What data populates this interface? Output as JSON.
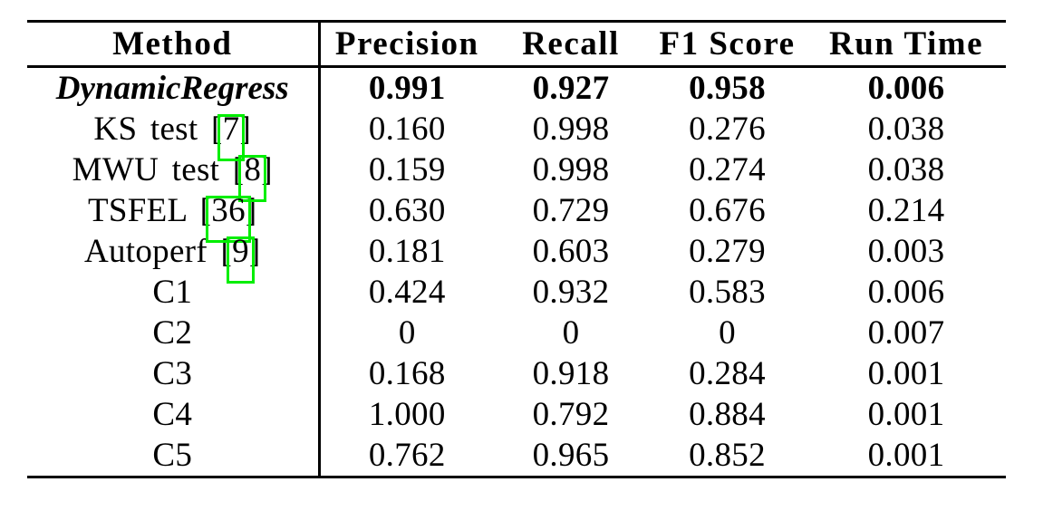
{
  "page": {
    "background": "#ffffff",
    "citation_box_color": "#00ee00"
  },
  "table": {
    "columns": [
      "Method",
      "Precision",
      "Recall",
      "F1 Score",
      "Run Time"
    ],
    "rows": [
      {
        "label": "DynamicRegress",
        "citation": "",
        "label_end": "",
        "emphasis": true,
        "values": [
          "0.991",
          "0.927",
          "0.958",
          "0.006"
        ]
      },
      {
        "label": "KS test [",
        "citation": "7",
        "label_end": "]",
        "emphasis": false,
        "values": [
          "0.160",
          "0.998",
          "0.276",
          "0.038"
        ]
      },
      {
        "label": "MWU test [",
        "citation": "8",
        "label_end": "]",
        "emphasis": false,
        "values": [
          "0.159",
          "0.998",
          "0.274",
          "0.038"
        ]
      },
      {
        "label": "TSFEL [",
        "citation": "36",
        "label_end": "]",
        "emphasis": false,
        "values": [
          "0.630",
          "0.729",
          "0.676",
          "0.214"
        ]
      },
      {
        "label": "Autoperf [",
        "citation": "9",
        "label_end": "]",
        "emphasis": false,
        "values": [
          "0.181",
          "0.603",
          "0.279",
          "0.003"
        ]
      },
      {
        "label": "C1",
        "citation": "",
        "label_end": "",
        "emphasis": false,
        "values": [
          "0.424",
          "0.932",
          "0.583",
          "0.006"
        ]
      },
      {
        "label": "C2",
        "citation": "",
        "label_end": "",
        "emphasis": false,
        "values": [
          "0",
          "0",
          "0",
          "0.007"
        ]
      },
      {
        "label": "C3",
        "citation": "",
        "label_end": "",
        "emphasis": false,
        "values": [
          "0.168",
          "0.918",
          "0.284",
          "0.001"
        ]
      },
      {
        "label": "C4",
        "citation": "",
        "label_end": "",
        "emphasis": false,
        "values": [
          "1.000",
          "0.792",
          "0.884",
          "0.001"
        ]
      },
      {
        "label": "C5",
        "citation": "",
        "label_end": "",
        "emphasis": false,
        "values": [
          "0.762",
          "0.965",
          "0.852",
          "0.001"
        ]
      }
    ]
  }
}
